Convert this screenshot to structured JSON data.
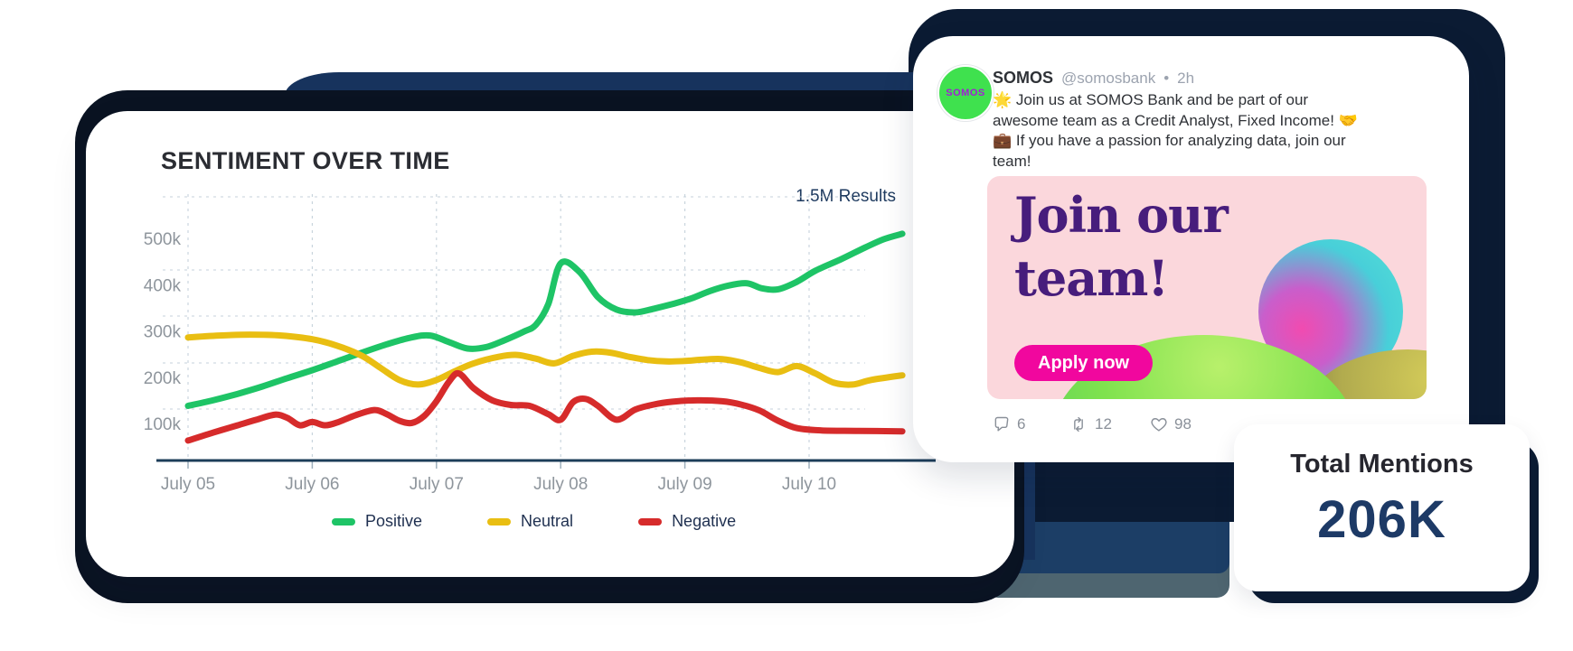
{
  "chart_card": {
    "title": "SENTIMENT OVER TIME",
    "results_label": "1.5M Results"
  },
  "chart_data": {
    "type": "line",
    "title": "SENTIMENT OVER TIME",
    "subtitle": "1.5M Results",
    "xlabel": "",
    "ylabel": "",
    "x_unit": "days (offset from July 05)",
    "y_unit": "mentions (thousands)",
    "x_tick_labels": [
      "July 05",
      "July 06",
      "July 07",
      "July 08",
      "July 09",
      "July 10"
    ],
    "y_tick_labels": [
      "500k",
      "400k",
      "300k",
      "200k",
      "100k"
    ],
    "y_tick_values": [
      500,
      400,
      300,
      200,
      100
    ],
    "ylim": [
      0,
      560
    ],
    "grid": "dashed",
    "legend_position": "bottom",
    "series": [
      {
        "name": "Positive",
        "color": "#1EC466",
        "points": [
          [
            0,
            140
          ],
          [
            0.2,
            152
          ],
          [
            0.4,
            166
          ],
          [
            0.6,
            182
          ],
          [
            0.8,
            200
          ],
          [
            1.0,
            217
          ],
          [
            1.2,
            236
          ],
          [
            1.4,
            255
          ],
          [
            1.6,
            273
          ],
          [
            1.8,
            288
          ],
          [
            1.95,
            292
          ],
          [
            2.1,
            278
          ],
          [
            2.25,
            264
          ],
          [
            2.4,
            267
          ],
          [
            2.55,
            282
          ],
          [
            2.7,
            300
          ],
          [
            2.8,
            315
          ],
          [
            2.9,
            360
          ],
          [
            3.0,
            448
          ],
          [
            3.15,
            430
          ],
          [
            3.3,
            375
          ],
          [
            3.45,
            348
          ],
          [
            3.6,
            342
          ],
          [
            3.75,
            350
          ],
          [
            3.9,
            360
          ],
          [
            4.05,
            372
          ],
          [
            4.2,
            388
          ],
          [
            4.35,
            400
          ],
          [
            4.5,
            405
          ],
          [
            4.62,
            394
          ],
          [
            4.75,
            392
          ],
          [
            4.9,
            408
          ],
          [
            5.05,
            432
          ],
          [
            5.25,
            456
          ],
          [
            5.45,
            482
          ],
          [
            5.6,
            500
          ],
          [
            5.75,
            512
          ]
        ]
      },
      {
        "name": "Neutral",
        "color": "#E9BE12",
        "points": [
          [
            0,
            288
          ],
          [
            0.25,
            292
          ],
          [
            0.5,
            294
          ],
          [
            0.75,
            292
          ],
          [
            1.0,
            284
          ],
          [
            1.2,
            270
          ],
          [
            1.4,
            248
          ],
          [
            1.55,
            222
          ],
          [
            1.7,
            196
          ],
          [
            1.85,
            186
          ],
          [
            2.0,
            196
          ],
          [
            2.15,
            215
          ],
          [
            2.3,
            232
          ],
          [
            2.5,
            246
          ],
          [
            2.65,
            250
          ],
          [
            2.8,
            242
          ],
          [
            2.95,
            232
          ],
          [
            3.1,
            248
          ],
          [
            3.25,
            257
          ],
          [
            3.4,
            255
          ],
          [
            3.55,
            246
          ],
          [
            3.7,
            239
          ],
          [
            3.85,
            236
          ],
          [
            4.0,
            237
          ],
          [
            4.15,
            240
          ],
          [
            4.3,
            241
          ],
          [
            4.45,
            234
          ],
          [
            4.6,
            222
          ],
          [
            4.75,
            213
          ],
          [
            4.9,
            226
          ],
          [
            5.05,
            210
          ],
          [
            5.2,
            190
          ],
          [
            5.35,
            186
          ],
          [
            5.5,
            196
          ],
          [
            5.75,
            206
          ]
        ]
      },
      {
        "name": "Negative",
        "color": "#D62B2B",
        "points": [
          [
            0,
            65
          ],
          [
            0.2,
            82
          ],
          [
            0.4,
            98
          ],
          [
            0.55,
            110
          ],
          [
            0.7,
            121
          ],
          [
            0.8,
            114
          ],
          [
            0.9,
            98
          ],
          [
            1.0,
            105
          ],
          [
            1.1,
            98
          ],
          [
            1.2,
            104
          ],
          [
            1.35,
            120
          ],
          [
            1.5,
            131
          ],
          [
            1.6,
            122
          ],
          [
            1.7,
            108
          ],
          [
            1.8,
            103
          ],
          [
            1.9,
            118
          ],
          [
            2.0,
            150
          ],
          [
            2.1,
            192
          ],
          [
            2.18,
            210
          ],
          [
            2.3,
            178
          ],
          [
            2.45,
            152
          ],
          [
            2.6,
            142
          ],
          [
            2.75,
            140
          ],
          [
            2.9,
            122
          ],
          [
            3.0,
            110
          ],
          [
            3.1,
            148
          ],
          [
            3.2,
            155
          ],
          [
            3.3,
            140
          ],
          [
            3.45,
            110
          ],
          [
            3.6,
            132
          ],
          [
            3.75,
            143
          ],
          [
            3.9,
            149
          ],
          [
            4.1,
            152
          ],
          [
            4.3,
            150
          ],
          [
            4.45,
            143
          ],
          [
            4.6,
            130
          ],
          [
            4.75,
            108
          ],
          [
            4.9,
            92
          ],
          [
            5.1,
            87
          ],
          [
            5.4,
            86
          ],
          [
            5.75,
            85
          ]
        ]
      }
    ]
  },
  "tweet_card": {
    "name": "SOMOS",
    "handle": "@somosbank",
    "dot": "•",
    "time": "2h",
    "avatar_text": "SOMOS",
    "body": "🌟 Join us at SOMOS Bank and be part of our awesome team as a Credit Analyst, Fixed Income! 🤝💼 If you have a passion for analyzing data, join our team!",
    "ad": {
      "headline_line1": "Join our",
      "headline_line2": "team!",
      "cta_label": "Apply now",
      "bg_color": "#FBD7DC",
      "headline_color": "#471D7C",
      "cta_color": "#F1079E"
    },
    "stats": {
      "comments": "6",
      "retweets": "12",
      "likes": "98"
    }
  },
  "total_mentions_card": {
    "label": "Total Mentions",
    "value": "206K",
    "value_color": "#1D3A66"
  }
}
